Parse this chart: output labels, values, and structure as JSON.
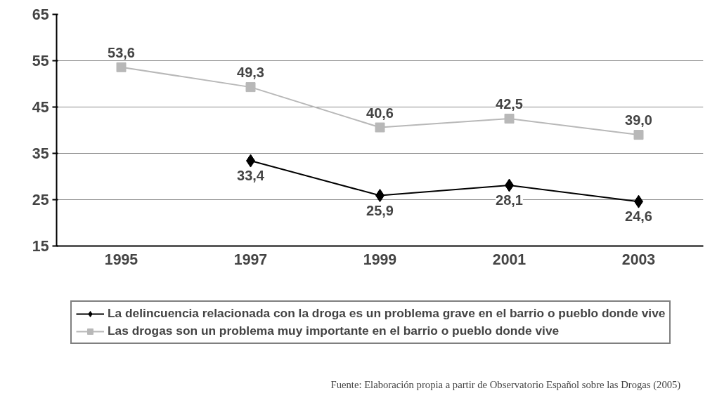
{
  "chart_data": {
    "type": "line",
    "categories": [
      "1995",
      "1997",
      "1999",
      "2001",
      "2003"
    ],
    "series": [
      {
        "name": "La delincuencia relacionada con la droga es un problema grave en el barrio o pueblo donde vive",
        "color": "#000000",
        "marker": "diamond",
        "values": [
          null,
          33.4,
          25.9,
          28.1,
          24.6
        ],
        "value_labels": [
          null,
          "33,4",
          "25,9",
          "28,1",
          "24,6"
        ]
      },
      {
        "name": "Las drogas son un problema muy importante en el barrio o pueblo donde vive",
        "color": "#b8b8b8",
        "marker": "square",
        "values": [
          53.6,
          49.3,
          40.6,
          42.5,
          39.0
        ],
        "value_labels": [
          "53,6",
          "49,3",
          "40,6",
          "42,5",
          "39,0"
        ]
      }
    ],
    "ylim": [
      15,
      65
    ],
    "yticks": [
      15,
      25,
      35,
      45,
      55,
      65
    ],
    "grid": "y",
    "legend": "bottom",
    "annotations": [
      "Fuente: Elaboración propia a partir de Observatorio Español sobre las Drogas (2005)"
    ]
  }
}
